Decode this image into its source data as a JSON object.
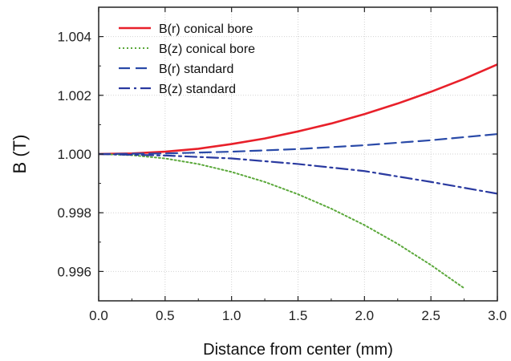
{
  "chart_data": {
    "type": "line",
    "xlabel": "Distance from center (mm)",
    "ylabel": "B (T)",
    "xlim": [
      0,
      3.0
    ],
    "ylim": [
      0.995,
      1.005
    ],
    "x_ticks": [
      "0.0",
      "0.5",
      "1.0",
      "1.5",
      "2.0",
      "2.5",
      "3.0"
    ],
    "y_ticks": [
      "0.996",
      "0.998",
      "1.000",
      "1.002",
      "1.004"
    ],
    "grid": true,
    "legend_position": "top-left",
    "series": [
      {
        "name": "B(r) conical bore",
        "color": "#e8202a",
        "style": "solid",
        "x": [
          0,
          0.25,
          0.5,
          0.75,
          1.0,
          1.25,
          1.5,
          1.75,
          2.0,
          2.25,
          2.5,
          2.75,
          3.0
        ],
        "y": [
          1.0,
          1.00002,
          1.00008,
          1.00018,
          1.00034,
          1.00053,
          1.00077,
          1.00104,
          1.00136,
          1.00172,
          1.00212,
          1.00256,
          1.00305
        ]
      },
      {
        "name": "B(z) conical bore",
        "color": "#5aa83a",
        "style": "dotted",
        "x": [
          0,
          0.25,
          0.5,
          0.75,
          1.0,
          1.25,
          1.5,
          1.75,
          2.0,
          2.25,
          2.5,
          2.75
        ],
        "y": [
          1.0,
          0.99996,
          0.99985,
          0.99966,
          0.99939,
          0.99905,
          0.99863,
          0.99814,
          0.99758,
          0.99694,
          0.99622,
          0.99543
        ]
      },
      {
        "name": "B(r) standard",
        "color": "#2a4aa8",
        "style": "dashed",
        "x": [
          0,
          0.5,
          1.0,
          1.5,
          2.0,
          2.5,
          3.0
        ],
        "y": [
          1.0,
          1.00002,
          1.00008,
          1.00017,
          1.0003,
          1.00047,
          1.00068
        ]
      },
      {
        "name": "B(z) standard",
        "color": "#2a3aa0",
        "style": "dashdot",
        "x": [
          0,
          0.5,
          1.0,
          1.5,
          2.0,
          2.5,
          3.0
        ],
        "y": [
          1.0,
          0.99995,
          0.99985,
          0.99966,
          0.99942,
          0.99905,
          0.99865
        ]
      }
    ]
  }
}
